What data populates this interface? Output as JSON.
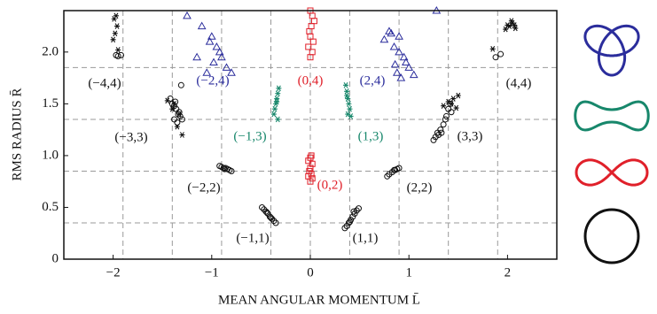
{
  "chart_data": {
    "type": "scatter",
    "x_label": "MEAN ANGULAR MOMENTUM L̄",
    "y_label": "RMS RADIUS R̄",
    "xlim": [
      -2.5,
      2.5
    ],
    "ylim": [
      0,
      2.4
    ],
    "xticks": [
      {
        "value": -2,
        "label": "−2"
      },
      {
        "value": -1,
        "label": "−1"
      },
      0,
      1,
      2
    ],
    "yticks": [
      0,
      0.5,
      {
        "value": 1.0,
        "label": "1.0"
      },
      1.5,
      {
        "value": 2.0,
        "label": "2.0"
      }
    ],
    "ref_vlines": [
      -1.9,
      -1.4,
      -0.9,
      -0.4,
      0,
      0.4,
      0.9,
      1.4,
      1.9
    ],
    "ref_hlines": [
      0.35,
      0.85,
      1.35,
      1.85
    ],
    "series": [
      {
        "marker": "circle",
        "color": "#111111",
        "x": [
          0.35,
          0.37,
          0.39,
          0.41,
          0.43,
          0.45,
          0.47,
          0.49,
          0.44,
          0.4,
          -0.49,
          -0.47,
          -0.45,
          -0.43,
          -0.41,
          -0.39,
          -0.37,
          -0.35,
          -0.44,
          -0.4,
          0.8,
          0.78,
          0.83,
          0.86,
          0.88,
          0.9,
          0.85,
          -0.92,
          -0.9,
          -0.88,
          -0.86,
          -0.84,
          -0.82,
          -0.8,
          -0.87,
          1.25,
          1.27,
          1.3,
          1.32,
          1.35,
          1.38,
          1.4,
          1.42,
          1.33,
          1.37,
          1.43,
          1.29,
          -1.42,
          -1.4,
          -1.38,
          -1.36,
          -1.34,
          -1.32,
          -1.3,
          -1.38,
          -1.35,
          -1.33,
          -1.37,
          -1.31,
          1.88,
          1.93,
          -1.97,
          -1.95,
          -1.92
        ],
        "y": [
          0.3,
          0.32,
          0.35,
          0.38,
          0.41,
          0.44,
          0.47,
          0.49,
          0.46,
          0.36,
          0.5,
          0.48,
          0.46,
          0.44,
          0.41,
          0.39,
          0.37,
          0.35,
          0.45,
          0.4,
          0.82,
          0.8,
          0.84,
          0.86,
          0.87,
          0.88,
          0.86,
          0.9,
          0.89,
          0.88,
          0.88,
          0.87,
          0.86,
          0.85,
          0.87,
          1.15,
          1.18,
          1.2,
          1.25,
          1.3,
          1.38,
          1.45,
          1.5,
          1.22,
          1.35,
          1.42,
          1.22,
          1.55,
          1.5,
          1.48,
          1.45,
          1.4,
          1.38,
          1.35,
          1.35,
          1.32,
          1.42,
          1.52,
          1.68,
          1.95,
          1.98,
          1.97,
          1.96,
          1.97
        ]
      },
      {
        "marker": "asterisk",
        "color": "#111111",
        "x": [
          1.98,
          2.02,
          2.05,
          2.08,
          2.0,
          2.04,
          2.07,
          1.85,
          -1.97,
          -1.99,
          -1.96,
          -1.98,
          -2.0,
          -1.95,
          1.35,
          1.4,
          1.45,
          1.5,
          1.43,
          1.48,
          -1.45,
          -1.38,
          -1.33,
          -1.35,
          -1.3,
          -1.4
        ],
        "y": [
          2.22,
          2.25,
          2.28,
          2.23,
          2.26,
          2.3,
          2.26,
          2.03,
          2.35,
          2.32,
          2.25,
          2.18,
          2.12,
          2.02,
          1.48,
          1.52,
          1.55,
          1.58,
          1.5,
          1.46,
          1.53,
          1.5,
          1.4,
          1.28,
          1.2,
          1.45
        ]
      },
      {
        "marker": "asterisk",
        "color": "#17876b",
        "x": [
          0.36,
          0.37,
          0.38,
          0.39,
          0.4,
          0.38,
          0.37,
          0.41,
          -0.32,
          -0.33,
          -0.34,
          -0.35,
          -0.36,
          -0.37,
          -0.34,
          -0.33
        ],
        "y": [
          1.68,
          1.62,
          1.55,
          1.5,
          1.45,
          1.4,
          1.58,
          1.38,
          1.65,
          1.6,
          1.55,
          1.5,
          1.45,
          1.4,
          1.52,
          1.35
        ]
      },
      {
        "marker": "square",
        "color": "#e0202a",
        "x": [
          0,
          0.02,
          -0.02,
          0.01,
          -0.01,
          0,
          0.02,
          -0.02,
          0,
          0.01,
          0,
          0.02,
          -0.02,
          0.03,
          0,
          -0.01,
          0.01,
          0.04,
          0,
          0.02
        ],
        "y": [
          0.75,
          0.78,
          0.8,
          0.82,
          0.85,
          0.88,
          0.92,
          0.95,
          0.98,
          1.0,
          1.95,
          2.0,
          2.05,
          2.1,
          2.15,
          2.2,
          2.25,
          2.3,
          2.4,
          2.35
        ]
      },
      {
        "marker": "triangle",
        "color": "#2b2d9c",
        "x": [
          0.75,
          0.8,
          0.85,
          0.9,
          0.95,
          1.0,
          0.88,
          0.92,
          1.05,
          1.28,
          0.82,
          0.97,
          0.9,
          0.86,
          -1.25,
          -1.1,
          -1.0,
          -0.95,
          -0.9,
          -0.85,
          -1.05,
          -0.98,
          -0.92,
          -0.8,
          -1.15,
          -1.02
        ],
        "y": [
          2.12,
          2.2,
          2.05,
          2.15,
          1.95,
          1.85,
          1.8,
          1.75,
          1.78,
          2.4,
          2.18,
          1.9,
          2.0,
          1.88,
          2.35,
          2.25,
          2.15,
          2.05,
          1.95,
          1.85,
          1.8,
          1.9,
          2.0,
          1.8,
          1.95,
          2.1
        ]
      }
    ],
    "annotations": [
      {
        "text": "(−4,4)",
        "color": "#111111"
      },
      {
        "text": "(−2,4)",
        "color": "#2b2d9c"
      },
      {
        "text": "(0,4)",
        "color": "#e0202a"
      },
      {
        "text": "(2,4)",
        "color": "#2b2d9c"
      },
      {
        "text": "(4,4)",
        "color": "#111111"
      },
      {
        "text": "(−3,3)",
        "color": "#111111"
      },
      {
        "text": "(−1,3)",
        "color": "#17876b"
      },
      {
        "text": "(1,3)",
        "color": "#17876b"
      },
      {
        "text": "(3,3)",
        "color": "#111111"
      },
      {
        "text": "(−2,2)",
        "color": "#111111"
      },
      {
        "text": "(0,2)",
        "color": "#e0202a"
      },
      {
        "text": "(2,2)",
        "color": "#111111"
      },
      {
        "text": "(−1,1)",
        "color": "#111111"
      },
      {
        "text": "(1,1)",
        "color": "#111111"
      }
    ]
  }
}
